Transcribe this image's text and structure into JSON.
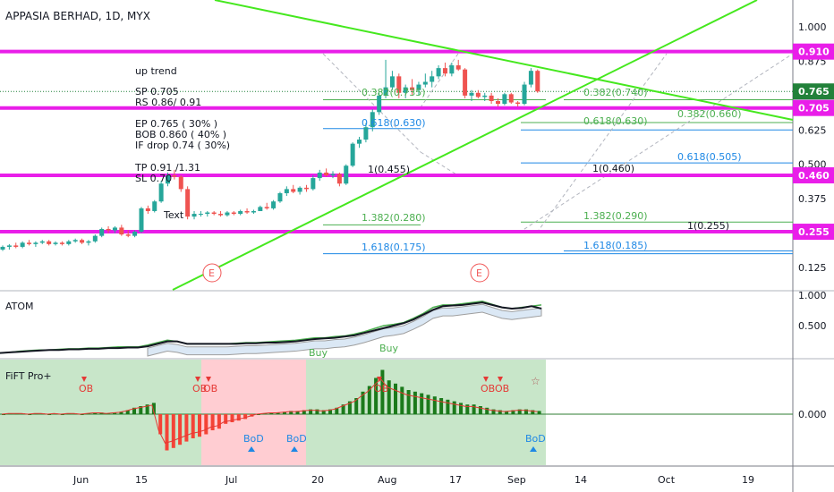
{
  "chart_data": [
    {
      "type": "candlestick",
      "title": "APPASIA BERHAD, 1D, MYX",
      "ylim": [
        0.05,
        1.05
      ],
      "y_ticks": [
        "1.000",
        "0.875",
        "0.750",
        "0.625",
        "0.500",
        "0.375",
        "0.250",
        "0.125"
      ],
      "x_ticks": [
        "Jun",
        "15",
        "Jul",
        "20",
        "Aug",
        "17",
        "Sep",
        "14",
        "Oct",
        "19"
      ],
      "price_tags": [
        {
          "label": "0.910",
          "value": 0.91,
          "color": "#e91ee9"
        },
        {
          "label": "0.765",
          "value": 0.765,
          "color": "#22813a"
        },
        {
          "label": "0.705",
          "value": 0.705,
          "color": "#e91ee9"
        },
        {
          "label": "0.460",
          "value": 0.46,
          "color": "#e91ee9"
        },
        {
          "label": "0.255",
          "value": 0.255,
          "color": "#e91ee9"
        }
      ],
      "horizontal_levels": [
        0.91,
        0.705,
        0.46,
        0.255
      ],
      "annotations": {
        "up_trend": "up trend",
        "sp": "SP 0.705",
        "rs": "RS 0.86/ 0.91",
        "ep": "EP 0.765 ( 30% )",
        "bob": "BOB 0.860 ( 40% )",
        "if_drop": "IF drop 0.74 ( 30%)",
        "tp": "TP 0.91 /1.31",
        "sl": "SL 0.70",
        "text": "Text",
        "e_marker": "E"
      },
      "fib_labels": [
        {
          "text": "0.382(0.735)",
          "color": "#4caf50"
        },
        {
          "text": "0.382(0.740)",
          "color": "#4caf50"
        },
        {
          "text": "0.382(0.660)",
          "color": "#4caf50"
        },
        {
          "text": "0.618(0.630)",
          "color": "#1e88e5"
        },
        {
          "text": "0.618(0.630)",
          "color": "#4caf50"
        },
        {
          "text": "0.618(0.505)",
          "color": "#1e88e5"
        },
        {
          "text": "1(0.455)",
          "color": "#131722"
        },
        {
          "text": "1(0.460)",
          "color": "#131722"
        },
        {
          "text": "1.382(0.280)",
          "color": "#4caf50"
        },
        {
          "text": "1.382(0.290)",
          "color": "#4caf50"
        },
        {
          "text": "1(0.255)",
          "color": "#131722"
        },
        {
          "text": "1.618(0.175)",
          "color": "#1e88e5"
        },
        {
          "text": "1.618(0.185)",
          "color": "#1e88e5"
        }
      ],
      "candles": [
        [
          0.19,
          0.205,
          0.185,
          0.2
        ],
        [
          0.2,
          0.21,
          0.19,
          0.205
        ],
        [
          0.205,
          0.215,
          0.195,
          0.2
        ],
        [
          0.2,
          0.22,
          0.195,
          0.215
        ],
        [
          0.215,
          0.225,
          0.205,
          0.21
        ],
        [
          0.21,
          0.22,
          0.2,
          0.215
        ],
        [
          0.215,
          0.225,
          0.21,
          0.22
        ],
        [
          0.22,
          0.225,
          0.205,
          0.21
        ],
        [
          0.21,
          0.22,
          0.205,
          0.215
        ],
        [
          0.215,
          0.22,
          0.205,
          0.21
        ],
        [
          0.21,
          0.225,
          0.205,
          0.22
        ],
        [
          0.22,
          0.23,
          0.215,
          0.225
        ],
        [
          0.225,
          0.23,
          0.21,
          0.215
        ],
        [
          0.215,
          0.225,
          0.205,
          0.22
        ],
        [
          0.22,
          0.245,
          0.215,
          0.24
        ],
        [
          0.24,
          0.27,
          0.235,
          0.265
        ],
        [
          0.265,
          0.275,
          0.25,
          0.26
        ],
        [
          0.26,
          0.275,
          0.25,
          0.27
        ],
        [
          0.27,
          0.28,
          0.24,
          0.245
        ],
        [
          0.245,
          0.26,
          0.235,
          0.24
        ],
        [
          0.24,
          0.26,
          0.235,
          0.255
        ],
        [
          0.255,
          0.345,
          0.25,
          0.34
        ],
        [
          0.34,
          0.35,
          0.32,
          0.33
        ],
        [
          0.33,
          0.37,
          0.325,
          0.365
        ],
        [
          0.365,
          0.44,
          0.36,
          0.43
        ],
        [
          0.43,
          0.47,
          0.42,
          0.46
        ],
        [
          0.46,
          0.48,
          0.445,
          0.455
        ],
        [
          0.455,
          0.46,
          0.4,
          0.41
        ],
        [
          0.41,
          0.42,
          0.3,
          0.31
        ],
        [
          0.31,
          0.33,
          0.3,
          0.32
        ],
        [
          0.32,
          0.33,
          0.31,
          0.32
        ],
        [
          0.32,
          0.33,
          0.31,
          0.325
        ],
        [
          0.325,
          0.33,
          0.315,
          0.32
        ],
        [
          0.32,
          0.33,
          0.31,
          0.315
        ],
        [
          0.315,
          0.33,
          0.31,
          0.325
        ],
        [
          0.325,
          0.33,
          0.315,
          0.32
        ],
        [
          0.32,
          0.335,
          0.315,
          0.33
        ],
        [
          0.33,
          0.34,
          0.32,
          0.325
        ],
        [
          0.325,
          0.335,
          0.32,
          0.33
        ],
        [
          0.33,
          0.35,
          0.33,
          0.345
        ],
        [
          0.345,
          0.36,
          0.335,
          0.34
        ],
        [
          0.34,
          0.37,
          0.335,
          0.365
        ],
        [
          0.365,
          0.4,
          0.36,
          0.395
        ],
        [
          0.395,
          0.42,
          0.385,
          0.41
        ],
        [
          0.41,
          0.425,
          0.395,
          0.4
        ],
        [
          0.4,
          0.42,
          0.39,
          0.415
        ],
        [
          0.415,
          0.425,
          0.4,
          0.41
        ],
        [
          0.41,
          0.46,
          0.405,
          0.45
        ],
        [
          0.45,
          0.48,
          0.44,
          0.47
        ],
        [
          0.47,
          0.485,
          0.455,
          0.46
        ],
        [
          0.46,
          0.475,
          0.45,
          0.465
        ],
        [
          0.465,
          0.47,
          0.42,
          0.43
        ],
        [
          0.43,
          0.5,
          0.425,
          0.495
        ],
        [
          0.495,
          0.58,
          0.49,
          0.575
        ],
        [
          0.575,
          0.6,
          0.56,
          0.59
        ],
        [
          0.59,
          0.65,
          0.58,
          0.635
        ],
        [
          0.635,
          0.7,
          0.62,
          0.69
        ],
        [
          0.69,
          0.76,
          0.68,
          0.75
        ],
        [
          0.75,
          0.88,
          0.74,
          0.78
        ],
        [
          0.78,
          0.84,
          0.77,
          0.82
        ],
        [
          0.82,
          0.83,
          0.74,
          0.76
        ],
        [
          0.76,
          0.79,
          0.74,
          0.78
        ],
        [
          0.78,
          0.81,
          0.75,
          0.77
        ],
        [
          0.77,
          0.8,
          0.75,
          0.79
        ],
        [
          0.79,
          0.83,
          0.78,
          0.8
        ],
        [
          0.8,
          0.84,
          0.78,
          0.82
        ],
        [
          0.82,
          0.86,
          0.81,
          0.85
        ],
        [
          0.85,
          0.87,
          0.82,
          0.83
        ],
        [
          0.83,
          0.87,
          0.82,
          0.86
        ],
        [
          0.86,
          0.88,
          0.84,
          0.845
        ],
        [
          0.845,
          0.85,
          0.74,
          0.75
        ],
        [
          0.75,
          0.77,
          0.73,
          0.76
        ],
        [
          0.76,
          0.77,
          0.74,
          0.745
        ],
        [
          0.745,
          0.76,
          0.73,
          0.75
        ],
        [
          0.75,
          0.76,
          0.72,
          0.73
        ],
        [
          0.73,
          0.74,
          0.71,
          0.72
        ],
        [
          0.72,
          0.76,
          0.715,
          0.755
        ],
        [
          0.755,
          0.76,
          0.72,
          0.725
        ],
        [
          0.725,
          0.73,
          0.71,
          0.72
        ],
        [
          0.72,
          0.8,
          0.715,
          0.79
        ],
        [
          0.79,
          0.85,
          0.78,
          0.84
        ],
        [
          0.84,
          0.845,
          0.76,
          0.765
        ]
      ]
    },
    {
      "type": "line",
      "title": "ATOM",
      "y_ticks": [
        "1.000",
        "0.500"
      ],
      "signals": [
        "Buy",
        "Buy"
      ],
      "series": [
        {
          "color": "#4caf50",
          "values": [
            0.05,
            0.06,
            0.08,
            0.09,
            0.1,
            0.1,
            0.11,
            0.12,
            0.12,
            0.13,
            0.13,
            0.14,
            0.15,
            0.15,
            0.15,
            0.18,
            0.22,
            0.26,
            0.24,
            0.2,
            0.2,
            0.2,
            0.2,
            0.2,
            0.21,
            0.22,
            0.22,
            0.23,
            0.24,
            0.25,
            0.26,
            0.28,
            0.3,
            0.3,
            0.32,
            0.33,
            0.36,
            0.4,
            0.45,
            0.5,
            0.52,
            0.55,
            0.62,
            0.7,
            0.8,
            0.84,
            0.84,
            0.86,
            0.88,
            0.9,
            0.85,
            0.8,
            0.78,
            0.8,
            0.82,
            0.84
          ]
        },
        {
          "color": "#131722",
          "values": [
            0.05,
            0.06,
            0.07,
            0.08,
            0.09,
            0.1,
            0.1,
            0.11,
            0.11,
            0.12,
            0.12,
            0.13,
            0.13,
            0.14,
            0.14,
            0.16,
            0.2,
            0.24,
            0.24,
            0.2,
            0.2,
            0.2,
            0.2,
            0.2,
            0.2,
            0.21,
            0.21,
            0.22,
            0.22,
            0.23,
            0.24,
            0.26,
            0.28,
            0.29,
            0.3,
            0.32,
            0.34,
            0.38,
            0.42,
            0.46,
            0.5,
            0.54,
            0.6,
            0.68,
            0.76,
            0.82,
            0.83,
            0.84,
            0.86,
            0.88,
            0.84,
            0.8,
            0.78,
            0.79,
            0.82,
            0.78
          ]
        }
      ]
    },
    {
      "type": "bar",
      "title": "FiFT Pro+",
      "y_ticks": [
        "0.000"
      ],
      "markers": [
        "OB",
        "OB",
        "OB",
        "OB",
        "OB",
        "OB",
        "BoD",
        "BoD",
        "BoD"
      ],
      "values": [
        0.0,
        0.01,
        0.01,
        0.01,
        0.0,
        0.01,
        0.01,
        0.0,
        0.01,
        0.0,
        0.01,
        0.01,
        0.0,
        0.01,
        0.02,
        0.02,
        0.01,
        0.02,
        0.03,
        0.05,
        0.08,
        0.1,
        0.12,
        0.14,
        -0.25,
        -0.45,
        -0.42,
        -0.38,
        -0.34,
        -0.3,
        -0.28,
        -0.25,
        -0.2,
        -0.18,
        -0.12,
        -0.1,
        -0.08,
        -0.06,
        -0.03,
        0.0,
        0.01,
        0.02,
        0.02,
        0.03,
        0.04,
        0.04,
        0.05,
        0.06,
        0.06,
        0.05,
        0.06,
        0.08,
        0.12,
        0.16,
        0.2,
        0.28,
        0.35,
        0.45,
        0.55,
        0.42,
        0.38,
        0.34,
        0.3,
        0.28,
        0.26,
        0.24,
        0.22,
        0.2,
        0.18,
        0.16,
        0.14,
        0.12,
        0.12,
        0.1,
        0.08,
        0.06,
        0.05,
        0.04,
        0.05,
        0.06,
        0.06,
        0.05,
        0.04
      ]
    }
  ],
  "time_axis_labels": [
    "Jun",
    "15",
    "Jul",
    "20",
    "Aug",
    "17",
    "Sep",
    "14",
    "Oct",
    "19"
  ]
}
